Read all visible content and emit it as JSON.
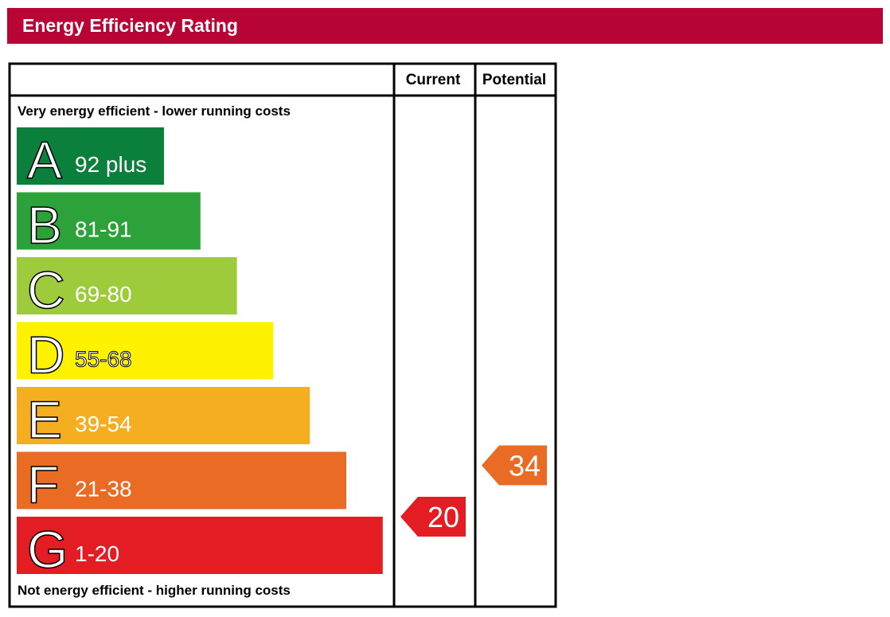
{
  "header": {
    "title": "Energy Efficiency Rating"
  },
  "chart_data": {
    "type": "bar",
    "title": "Energy Efficiency Rating",
    "columns": [
      "Current",
      "Potential"
    ],
    "top_caption": "Very energy efficient - lower running costs",
    "bottom_caption": "Not energy efficient - higher running costs",
    "bands": [
      {
        "letter": "A",
        "range": "92 plus",
        "color": "#0b7f3c"
      },
      {
        "letter": "B",
        "range": "81-91",
        "color": "#2da23a"
      },
      {
        "letter": "C",
        "range": "69-80",
        "color": "#9ecb3b"
      },
      {
        "letter": "D",
        "range": "55-68",
        "color": "#fff200"
      },
      {
        "letter": "E",
        "range": "39-54",
        "color": "#f5ae20"
      },
      {
        "letter": "F",
        "range": "21-38",
        "color": "#ea6b23"
      },
      {
        "letter": "G",
        "range": "1-20",
        "color": "#e31d23"
      }
    ],
    "current": {
      "value": 20,
      "band": "G",
      "color": "#e31d23"
    },
    "potential": {
      "value": 34,
      "band": "F",
      "color": "#ea6b23"
    }
  }
}
